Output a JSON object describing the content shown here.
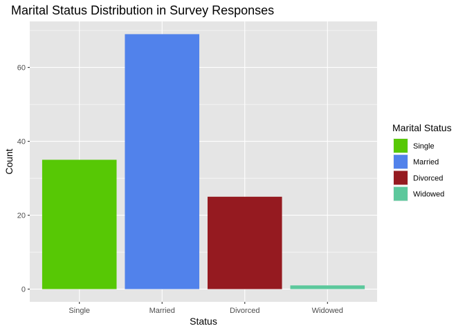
{
  "chart_data": {
    "type": "bar",
    "title": "Marital Status Distribution in Survey Responses",
    "xlabel": "Status",
    "ylabel": "Count",
    "categories": [
      "Single",
      "Married",
      "Divorced",
      "Widowed"
    ],
    "values": [
      35,
      69,
      25,
      1
    ],
    "colors": [
      "#57C805",
      "#5182EB",
      "#951A20",
      "#5CC89C"
    ],
    "ylim": [
      -3.45,
      72.45
    ],
    "yticks": [
      0,
      20,
      40,
      60
    ],
    "grid": true,
    "panel_background": "#E5E5E5",
    "grid_color": "#FFFFFF",
    "legend": {
      "title": "Marital Status",
      "position": "right",
      "items": [
        "Single",
        "Married",
        "Divorced",
        "Widowed"
      ]
    }
  }
}
